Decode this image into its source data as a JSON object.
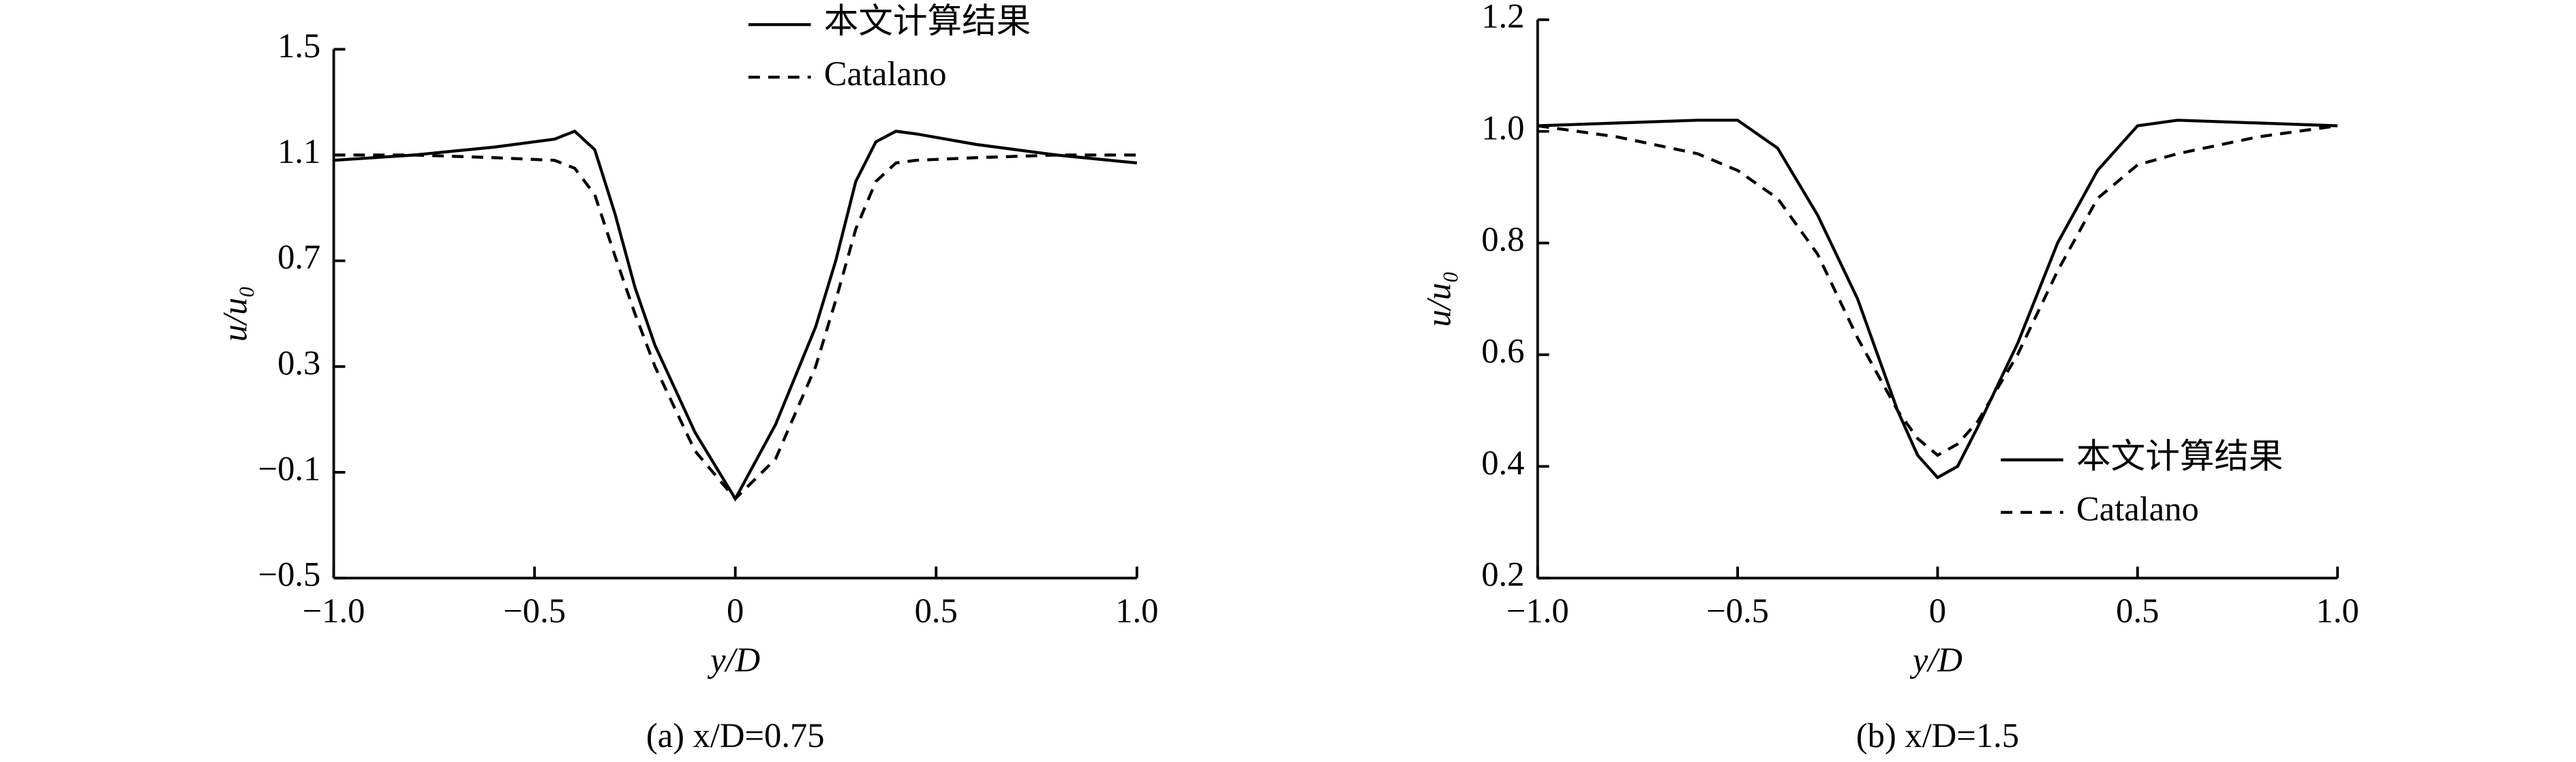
{
  "chart_data": [
    {
      "type": "line",
      "caption": "(a) x/D=0.75",
      "xlabel": "y/D",
      "ylabel": "u/u₀",
      "legend": "upper center",
      "x": [
        -1,
        -0.8,
        -0.6,
        -0.45,
        -0.4,
        -0.35,
        -0.3,
        -0.25,
        -0.2,
        -0.1,
        0,
        0.1,
        0.2,
        0.25,
        0.3,
        0.35,
        0.4,
        0.45,
        0.6,
        0.8,
        1.0
      ],
      "series": [
        {
          "name": "本文计算结果",
          "color": "#000000",
          "linestyle": "solid",
          "values": [
            1.08,
            1.1,
            1.13,
            1.16,
            1.19,
            1.12,
            0.88,
            0.6,
            0.38,
            0.05,
            -0.2,
            0.08,
            0.45,
            0.7,
            1.0,
            1.15,
            1.19,
            1.18,
            1.14,
            1.1,
            1.07
          ]
        },
        {
          "name": "Catalano",
          "color": "#000000",
          "linestyle": "dashed",
          "values": [
            1.1,
            1.1,
            1.09,
            1.08,
            1.05,
            0.95,
            0.72,
            0.5,
            0.3,
            -0.02,
            -0.2,
            -0.05,
            0.3,
            0.55,
            0.82,
            1.0,
            1.07,
            1.08,
            1.09,
            1.1,
            1.1
          ]
        }
      ],
      "xlim": [
        -1,
        1
      ],
      "xticks": [
        {
          "value": -1,
          "label": "−1.0"
        },
        {
          "value": -0.5,
          "label": "−0.5"
        },
        0,
        0.5,
        {
          "value": 1,
          "label": "1.0"
        }
      ],
      "ylim": [
        -0.5,
        1.5
      ],
      "yticks": [
        {
          "value": -0.5,
          "label": "−0.5"
        },
        {
          "value": -0.1,
          "label": "−0.1"
        },
        0.3,
        0.7,
        1.1,
        1.5
      ]
    },
    {
      "type": "line",
      "caption": "(b) x/D=1.5",
      "xlabel": "y/D",
      "ylabel": "u/u₀",
      "legend": "lower right",
      "x": [
        -1,
        -0.8,
        -0.6,
        -0.5,
        -0.4,
        -0.3,
        -0.2,
        -0.1,
        -0.05,
        0,
        0.05,
        0.1,
        0.2,
        0.3,
        0.4,
        0.5,
        0.6,
        0.8,
        1.0
      ],
      "series": [
        {
          "name": "本文计算结果",
          "color": "#000000",
          "linestyle": "solid",
          "values": [
            1.01,
            1.015,
            1.02,
            1.02,
            0.97,
            0.85,
            0.7,
            0.5,
            0.42,
            0.38,
            0.4,
            0.47,
            0.62,
            0.8,
            0.93,
            1.01,
            1.02,
            1.015,
            1.01
          ]
        },
        {
          "name": "Catalano",
          "color": "#000000",
          "linestyle": "dashed",
          "values": [
            1.01,
            0.99,
            0.96,
            0.93,
            0.88,
            0.78,
            0.63,
            0.5,
            0.45,
            0.42,
            0.44,
            0.48,
            0.6,
            0.75,
            0.88,
            0.94,
            0.96,
            0.99,
            1.01
          ]
        }
      ],
      "xlim": [
        -1,
        1
      ],
      "xticks": [
        {
          "value": -1,
          "label": "−1.0"
        },
        {
          "value": -0.5,
          "label": "−0.5"
        },
        0,
        0.5,
        {
          "value": 1,
          "label": "1.0"
        }
      ],
      "ylim": [
        0.2,
        1.2
      ],
      "yticks": [
        0.2,
        0.4,
        0.6,
        0.8,
        {
          "value": 1,
          "label": "1.0"
        },
        1.2
      ]
    }
  ]
}
